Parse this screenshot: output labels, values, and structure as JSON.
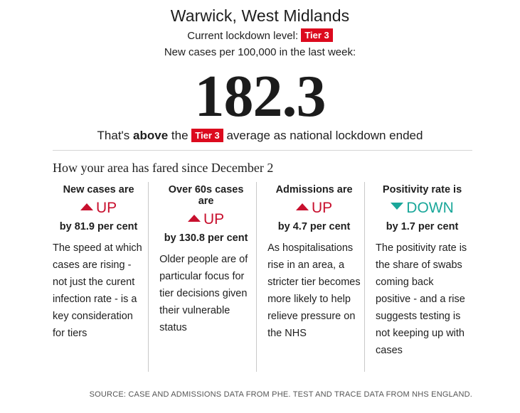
{
  "header": {
    "location": "Warwick, West Midlands",
    "lockdown_label": "Current lockdown level:",
    "lockdown_tier": "Tier 3",
    "rate_label": "New cases per 100,000 in the last week:",
    "rate_value": "182.3",
    "comparison_prefix": "That's",
    "comparison_word": "above",
    "comparison_the": "the",
    "comparison_tier": "Tier 3",
    "comparison_suffix": "average as national lockdown ended"
  },
  "section": {
    "heading": "How your area has fared since December 2"
  },
  "metrics": [
    {
      "title": "New cases are",
      "direction": "UP",
      "trend": "up",
      "change": "by 81.9 per cent",
      "description": "The speed at which cases are rising - not just the curent infection rate - is a key consideration for tiers"
    },
    {
      "title": "Over 60s cases are",
      "direction": "UP",
      "trend": "up",
      "change": "by 130.8 per cent",
      "description": "Older people are of particular focus for tier decisions given their vulnerable status"
    },
    {
      "title": "Admissions are",
      "direction": "UP",
      "trend": "up",
      "change": "by 4.7 per cent",
      "description": "As hospitalisations rise in an area, a stricter tier becomes more likely to help relieve pressure on the NHS"
    },
    {
      "title": "Positivity rate is",
      "direction": "DOWN",
      "trend": "down",
      "change": "by 1.7 per cent",
      "description": "The positivity rate is the share of swabs coming back positive - and a rise suggests testing is not keeping up with cases"
    }
  ],
  "footer": {
    "source": "SOURCE: CASE AND ADMISSIONS DATA FROM PHE. TEST AND TRACE DATA FROM NHS ENGLAND."
  },
  "colors": {
    "tier_badge": "#dc0a1e",
    "up": "#c8102e",
    "down": "#1aa79a"
  }
}
